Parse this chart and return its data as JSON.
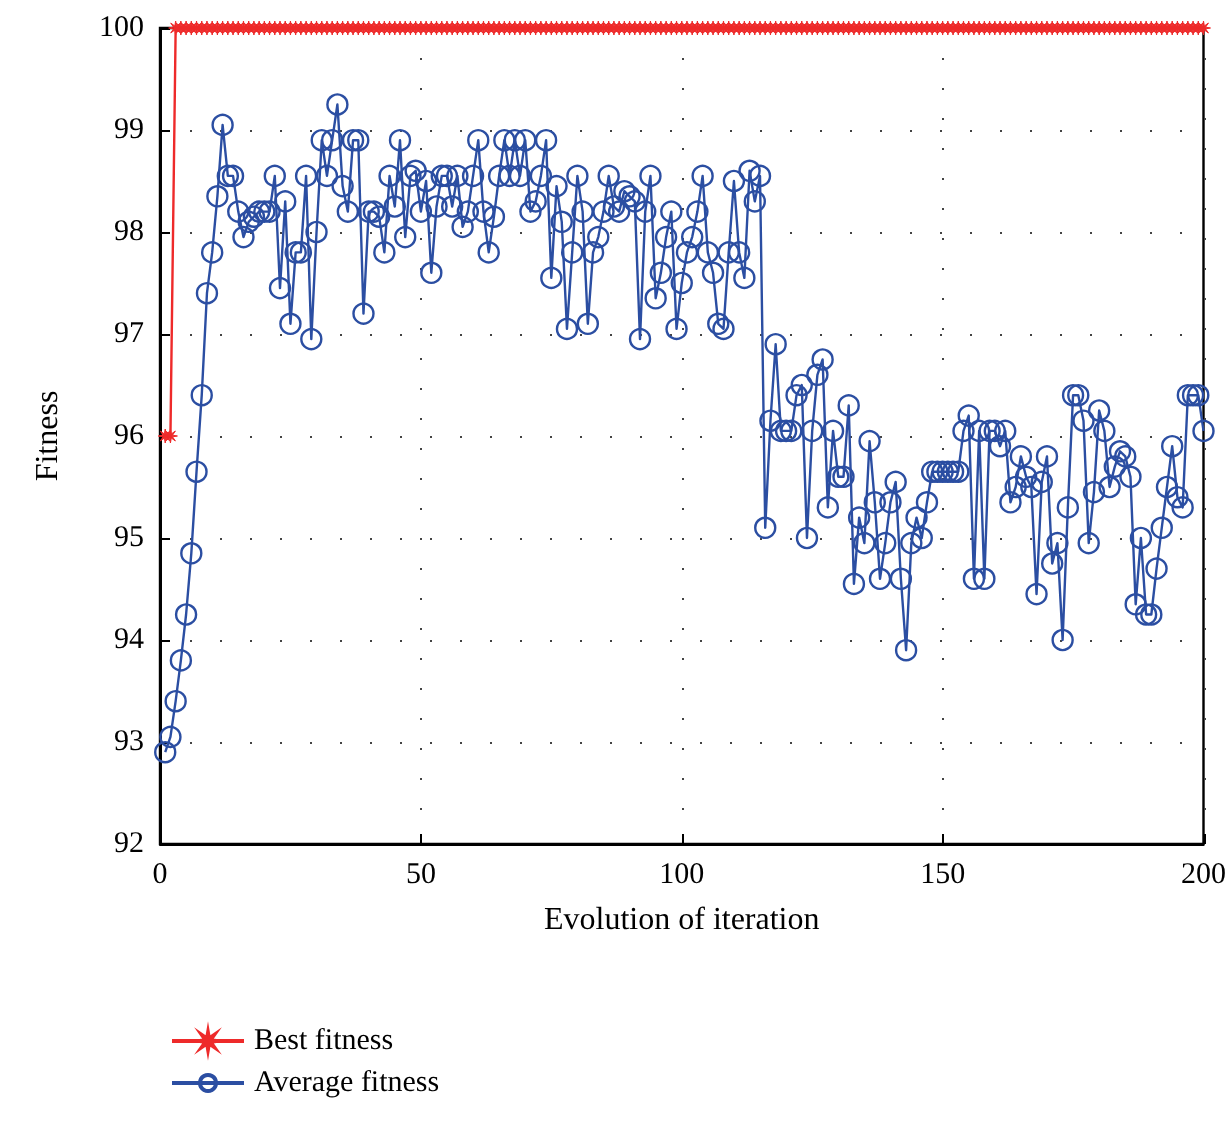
{
  "chart_data": {
    "type": "line",
    "xlabel": "Evolution of iteration",
    "ylabel": "Fitness",
    "x": [
      1,
      2,
      3,
      4,
      5,
      6,
      7,
      8,
      9,
      10,
      11,
      12,
      13,
      14,
      15,
      16,
      17,
      18,
      19,
      20,
      21,
      22,
      23,
      24,
      25,
      26,
      27,
      28,
      29,
      30,
      31,
      32,
      33,
      34,
      35,
      36,
      37,
      38,
      39,
      40,
      41,
      42,
      43,
      44,
      45,
      46,
      47,
      48,
      49,
      50,
      51,
      52,
      53,
      54,
      55,
      56,
      57,
      58,
      59,
      60,
      61,
      62,
      63,
      64,
      65,
      66,
      67,
      68,
      69,
      70,
      71,
      72,
      73,
      74,
      75,
      76,
      77,
      78,
      79,
      80,
      81,
      82,
      83,
      84,
      85,
      86,
      87,
      88,
      89,
      90,
      91,
      92,
      93,
      94,
      95,
      96,
      97,
      98,
      99,
      100,
      101,
      102,
      103,
      104,
      105,
      106,
      107,
      108,
      109,
      110,
      111,
      112,
      113,
      114,
      115,
      116,
      117,
      118,
      119,
      120,
      121,
      122,
      123,
      124,
      125,
      126,
      127,
      128,
      129,
      130,
      131,
      132,
      133,
      134,
      135,
      136,
      137,
      138,
      139,
      140,
      141,
      142,
      143,
      144,
      145,
      146,
      147,
      148,
      149,
      150,
      151,
      152,
      153,
      154,
      155,
      156,
      157,
      158,
      159,
      160,
      161,
      162,
      163,
      164,
      165,
      166,
      167,
      168,
      169,
      170,
      171,
      172,
      173,
      174,
      175,
      176,
      177,
      178,
      179,
      180,
      181,
      182,
      183,
      184,
      185,
      186,
      187,
      188,
      189,
      190,
      191,
      192,
      193,
      194,
      195,
      196,
      197,
      198,
      199,
      200
    ],
    "series": [
      {
        "name": "Best fitness",
        "color": "#ee2a2a",
        "marker": "star",
        "values": [
          96,
          96,
          100,
          100,
          100,
          100,
          100,
          100,
          100,
          100,
          100,
          100,
          100,
          100,
          100,
          100,
          100,
          100,
          100,
          100,
          100,
          100,
          100,
          100,
          100,
          100,
          100,
          100,
          100,
          100,
          100,
          100,
          100,
          100,
          100,
          100,
          100,
          100,
          100,
          100,
          100,
          100,
          100,
          100,
          100,
          100,
          100,
          100,
          100,
          100,
          100,
          100,
          100,
          100,
          100,
          100,
          100,
          100,
          100,
          100,
          100,
          100,
          100,
          100,
          100,
          100,
          100,
          100,
          100,
          100,
          100,
          100,
          100,
          100,
          100,
          100,
          100,
          100,
          100,
          100,
          100,
          100,
          100,
          100,
          100,
          100,
          100,
          100,
          100,
          100,
          100,
          100,
          100,
          100,
          100,
          100,
          100,
          100,
          100,
          100,
          100,
          100,
          100,
          100,
          100,
          100,
          100,
          100,
          100,
          100,
          100,
          100,
          100,
          100,
          100,
          100,
          100,
          100,
          100,
          100,
          100,
          100,
          100,
          100,
          100,
          100,
          100,
          100,
          100,
          100,
          100,
          100,
          100,
          100,
          100,
          100,
          100,
          100,
          100,
          100,
          100,
          100,
          100,
          100,
          100,
          100,
          100,
          100,
          100,
          100,
          100,
          100,
          100,
          100,
          100,
          100,
          100,
          100,
          100,
          100,
          100,
          100,
          100,
          100,
          100,
          100,
          100,
          100,
          100,
          100,
          100,
          100,
          100,
          100,
          100,
          100,
          100,
          100,
          100,
          100,
          100,
          100,
          100,
          100,
          100,
          100,
          100,
          100,
          100,
          100,
          100,
          100,
          100,
          100,
          100,
          100,
          100,
          100,
          100,
          100
        ]
      },
      {
        "name": "Average fitness",
        "color": "#2b4ea2",
        "marker": "circle",
        "values": [
          92.9,
          93.05,
          93.4,
          93.8,
          94.25,
          94.85,
          95.65,
          96.4,
          97.4,
          97.8,
          98.35,
          99.05,
          98.55,
          98.55,
          98.2,
          97.95,
          98.1,
          98.15,
          98.2,
          98.2,
          98.2,
          98.55,
          97.45,
          98.3,
          97.1,
          97.8,
          97.8,
          98.55,
          96.95,
          98.0,
          98.9,
          98.55,
          98.9,
          99.25,
          98.45,
          98.2,
          98.9,
          98.9,
          97.2,
          98.2,
          98.2,
          98.15,
          97.8,
          98.55,
          98.25,
          98.9,
          97.95,
          98.55,
          98.6,
          98.2,
          98.5,
          97.6,
          98.25,
          98.55,
          98.55,
          98.25,
          98.55,
          98.05,
          98.2,
          98.55,
          98.9,
          98.2,
          97.8,
          98.15,
          98.55,
          98.9,
          98.55,
          98.9,
          98.55,
          98.9,
          98.2,
          98.3,
          98.55,
          98.9,
          97.55,
          98.45,
          98.1,
          97.05,
          97.8,
          98.55,
          98.2,
          97.1,
          97.8,
          97.95,
          98.2,
          98.55,
          98.25,
          98.2,
          98.4,
          98.35,
          98.3,
          96.95,
          98.2,
          98.55,
          97.35,
          97.6,
          97.95,
          98.2,
          97.05,
          97.5,
          97.8,
          97.95,
          98.2,
          98.55,
          97.8,
          97.6,
          97.1,
          97.05,
          97.8,
          98.5,
          97.8,
          97.55,
          98.6,
          98.3,
          98.55,
          95.1,
          96.15,
          96.9,
          96.05,
          96.05,
          96.05,
          96.4,
          96.5,
          95.0,
          96.05,
          96.6,
          96.75,
          95.3,
          96.05,
          95.6,
          95.6,
          96.3,
          94.55,
          95.2,
          94.95,
          95.95,
          95.35,
          94.6,
          94.95,
          95.35,
          95.55,
          94.6,
          93.9,
          94.95,
          95.2,
          95.0,
          95.35,
          95.65,
          95.65,
          95.65,
          95.65,
          95.65,
          95.65,
          96.05,
          96.2,
          94.6,
          96.05,
          94.6,
          96.05,
          96.05,
          95.9,
          96.05,
          95.35,
          95.5,
          95.8,
          95.6,
          95.5,
          94.45,
          95.55,
          95.8,
          94.75,
          94.95,
          94.0,
          95.3,
          96.4,
          96.4,
          96.15,
          94.95,
          95.45,
          96.25,
          96.05,
          95.5,
          95.7,
          95.85,
          95.8,
          95.6,
          94.35,
          95.0,
          94.25,
          94.25,
          94.7,
          95.1,
          95.5,
          95.9,
          95.4,
          95.3,
          96.4,
          96.4,
          96.4,
          96.05
        ]
      }
    ],
    "xlim": [
      0,
      200
    ],
    "xticks": [
      0,
      50,
      100,
      150,
      200
    ],
    "ylim": [
      92,
      100
    ],
    "yticks": [
      92,
      93,
      94,
      95,
      96,
      97,
      98,
      99,
      100
    ],
    "grid": true,
    "legend": "bottom left",
    "line_style": "solid"
  }
}
